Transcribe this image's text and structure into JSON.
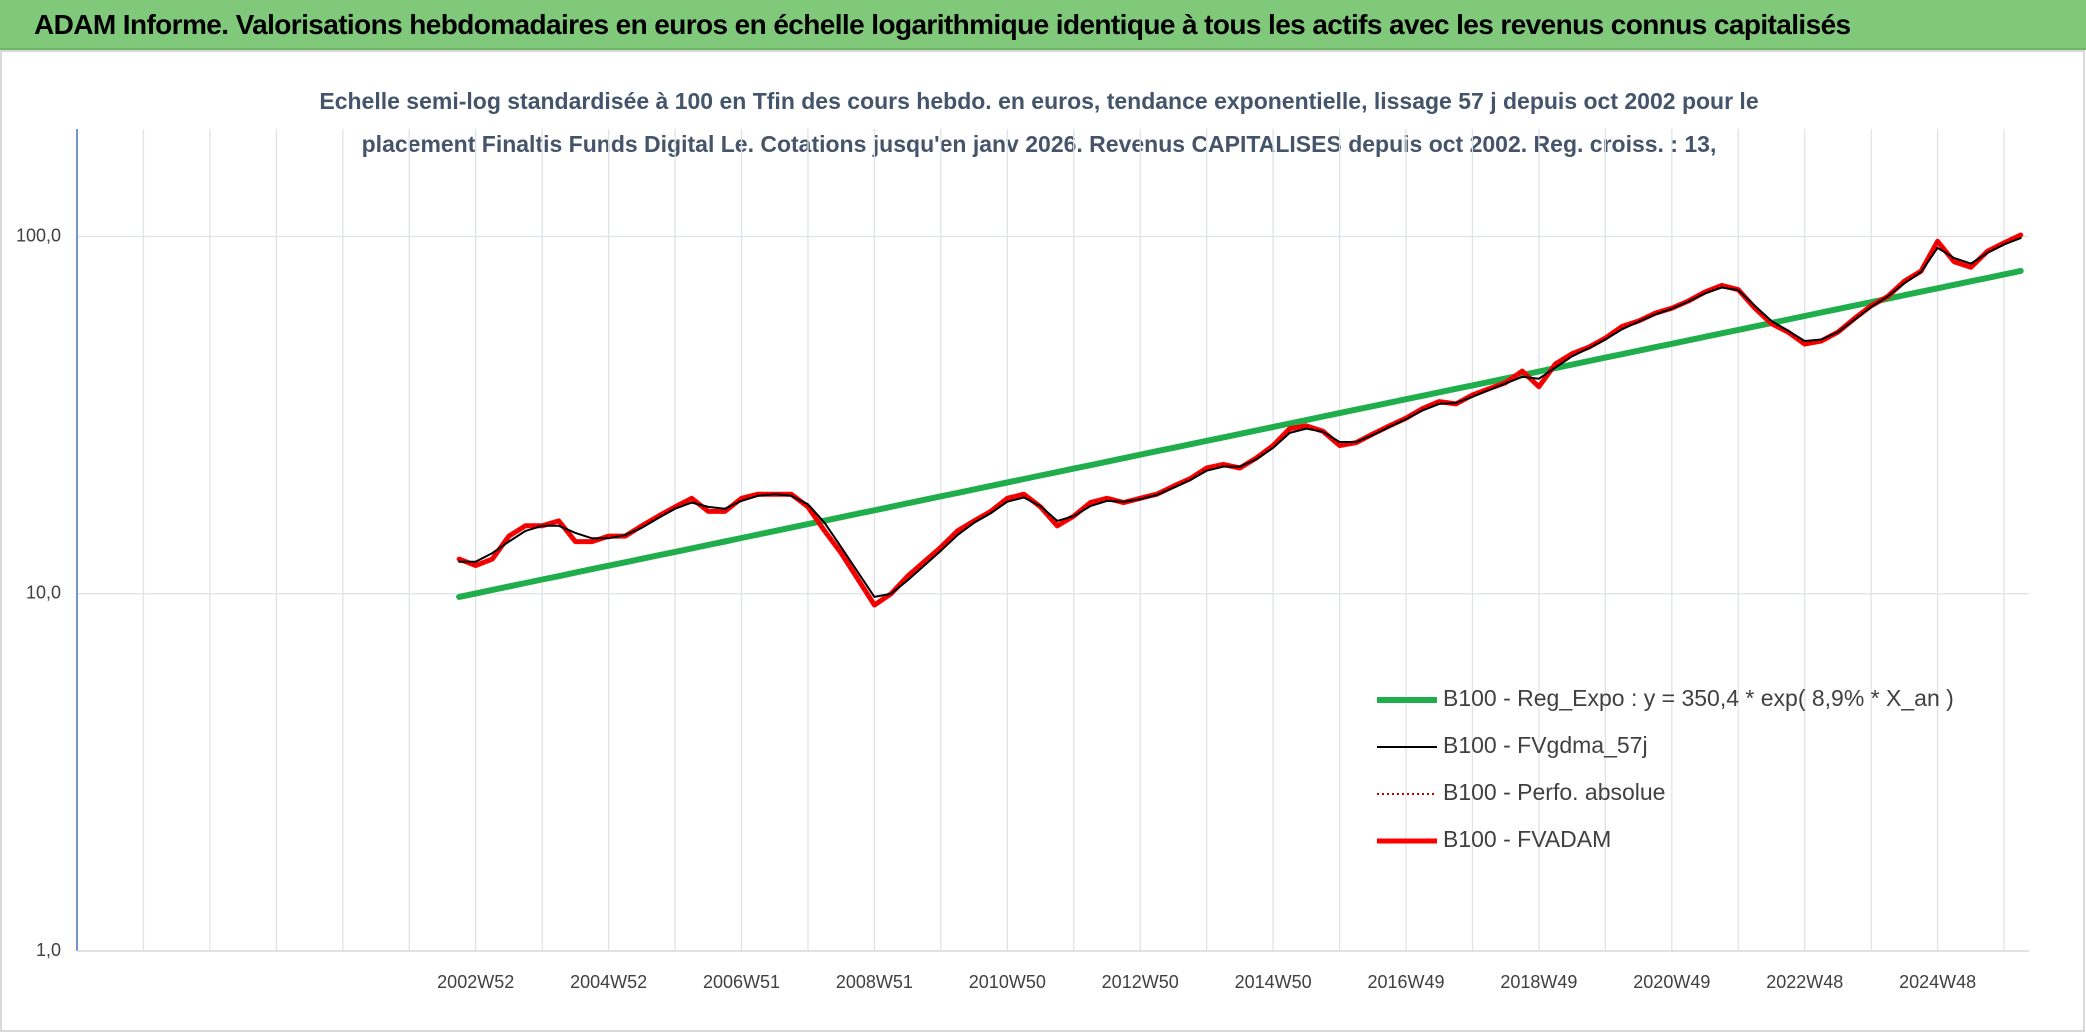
{
  "header": {
    "title": "ADAM Informe. Valorisations hebdomadaires en euros en échelle logarithmique identique à tous les actifs avec les revenus connus capitalisés"
  },
  "chart_data": {
    "type": "line",
    "subtitle": [
      "Echelle semi-log standardisée à 100 en Tfin des cours hebdo. en euros, tendance exponentielle, lissage 57 j depuis oct 2002 pour le",
      "placement Finaltis Funds Digital Le. Cotations jusqu'en janv 2026. Revenus CAPITALISES depuis oct 2002. Reg. croiss. : 13,"
    ],
    "log_scale": true,
    "grid": true,
    "ylim": [
      1,
      200
    ],
    "yticks": [
      {
        "value": 1,
        "label": "1,0"
      },
      {
        "value": 10,
        "label": "10,0"
      },
      {
        "value": 100,
        "label": "100,0"
      }
    ],
    "x": [
      null,
      null,
      null,
      null,
      null,
      null,
      null,
      null,
      null,
      null,
      null,
      null,
      null,
      null,
      null,
      null,
      null,
      null,
      null,
      null,
      null,
      null,
      null,
      null,
      "2002W52",
      null,
      null,
      null,
      null,
      null,
      null,
      null,
      "2004W52",
      null,
      null,
      null,
      null,
      null,
      null,
      null,
      "2006W51",
      null,
      null,
      null,
      null,
      null,
      null,
      null,
      "2008W51",
      null,
      null,
      null,
      null,
      null,
      null,
      null,
      "2010W50",
      null,
      null,
      null,
      null,
      null,
      null,
      null,
      "2012W50",
      null,
      null,
      null,
      null,
      null,
      null,
      null,
      "2014W50",
      null,
      null,
      null,
      null,
      null,
      null,
      null,
      "2016W49",
      null,
      null,
      null,
      null,
      null,
      null,
      null,
      "2018W49",
      null,
      null,
      null,
      null,
      null,
      null,
      null,
      "2020W49",
      null,
      null,
      null,
      null,
      null,
      null,
      null,
      "2022W48",
      null,
      null,
      null,
      null,
      null,
      null,
      null,
      "2024W48",
      null,
      null,
      null,
      null,
      null
    ],
    "series": [
      {
        "name": "B100 - Reg_Expo : y = 350,4 * exp( 8,9% *  X_an )",
        "color": "#1fae4b",
        "line_width": 6,
        "style": "solid",
        "values": [
          null,
          null,
          null,
          null,
          null,
          null,
          null,
          null,
          null,
          null,
          null,
          null,
          null,
          null,
          null,
          null,
          null,
          null,
          null,
          null,
          null,
          null,
          null,
          9.8,
          10.02,
          10.25,
          10.48,
          10.72,
          10.96,
          11.2,
          11.46,
          11.72,
          11.98,
          12.25,
          12.53,
          12.81,
          13.1,
          13.4,
          13.7,
          14.01,
          14.33,
          14.65,
          14.98,
          15.32,
          15.67,
          16.02,
          16.38,
          16.75,
          17.13,
          17.52,
          17.92,
          18.32,
          18.74,
          19.16,
          19.59,
          20.04,
          20.49,
          20.95,
          21.43,
          21.91,
          22.41,
          22.91,
          23.43,
          23.96,
          24.5,
          25.06,
          25.62,
          26.2,
          26.8,
          27.4,
          28.02,
          28.66,
          29.3,
          29.97,
          30.64,
          31.34,
          32.04,
          32.77,
          33.51,
          34.27,
          35.04,
          35.83,
          36.64,
          37.47,
          38.32,
          39.18,
          40.07,
          40.97,
          41.9,
          42.84,
          43.81,
          44.8,
          45.82,
          46.85,
          47.91,
          48.99,
          50.1,
          51.23,
          52.39,
          53.58,
          54.79,
          56.03,
          57.29,
          58.59,
          59.91,
          61.27,
          62.65,
          64.07,
          65.51,
          67,
          68.51,
          70.06,
          71.64,
          73.26,
          74.92,
          76.61,
          78.34,
          80.11
        ]
      },
      {
        "name": "B100 - FVgdma_57j",
        "color": "#000000",
        "line_width": 2,
        "style": "solid",
        "values": [
          null,
          null,
          null,
          null,
          null,
          null,
          null,
          null,
          null,
          null,
          null,
          null,
          null,
          null,
          null,
          null,
          null,
          null,
          null,
          null,
          null,
          null,
          null,
          12.3,
          12.3,
          13,
          14,
          15,
          15.5,
          15.5,
          14.8,
          14.3,
          14.3,
          14.6,
          15.3,
          16.3,
          17.3,
          18,
          17.5,
          17.3,
          18.2,
          18.8,
          19,
          18.8,
          17.8,
          15.8,
          13.5,
          11.5,
          9.8,
          10,
          10.9,
          12,
          13.2,
          14.6,
          15.8,
          16.8,
          18.1,
          18.6,
          17.6,
          16,
          16.5,
          17.6,
          18.2,
          18.1,
          18.4,
          18.9,
          19.8,
          20.8,
          22.1,
          22.7,
          22.7,
          23.8,
          25.6,
          28.2,
          29,
          28.4,
          26.6,
          26.6,
          27.8,
          29.3,
          30.8,
          32.6,
          34,
          34.2,
          35.6,
          37.2,
          38.8,
          40.5,
          40,
          43,
          46.2,
          48.7,
          51.5,
          55,
          57.8,
          60.5,
          62.8,
          65.8,
          69.3,
          72,
          70.8,
          64,
          58,
          54.5,
          51,
          51.5,
          54,
          58.5,
          63.5,
          68,
          74,
          79.5,
          93,
          87,
          84,
          90,
          95,
          99
        ]
      },
      {
        "name": "B100 - Perfo. absolue",
        "color": "#c00000",
        "line_width": 2,
        "style": "dotted",
        "values": [
          null,
          null,
          null,
          null,
          null,
          null,
          null,
          null,
          null,
          null,
          null,
          null,
          null,
          null,
          null,
          null,
          null,
          null,
          null,
          null,
          null,
          null,
          null,
          12.5,
          12,
          12.5,
          14.5,
          15.5,
          15.5,
          16,
          14,
          14,
          14.5,
          14.5,
          15.5,
          16.5,
          17.5,
          18.5,
          17,
          17,
          18.5,
          19,
          19,
          19,
          17.5,
          15,
          13,
          11,
          9.3,
          10,
          11.2,
          12.3,
          13.5,
          15,
          16,
          17,
          18.5,
          19,
          17.5,
          15.5,
          16.5,
          18,
          18.5,
          18,
          18.5,
          19,
          20,
          21,
          22.5,
          23,
          22.5,
          24,
          26,
          29,
          29.5,
          28.5,
          26,
          26.5,
          28,
          29.5,
          31,
          33,
          34.5,
          34,
          36,
          37.5,
          39,
          42,
          38,
          44,
          47,
          49,
          52,
          56,
          58,
          61,
          63,
          66,
          70,
          73,
          71,
          63,
          57,
          54,
          50,
          51,
          54,
          59,
          64,
          68,
          75,
          80,
          97,
          85,
          82,
          91,
          96,
          101
        ]
      },
      {
        "name": "B100 - FVADAM",
        "color": "#ff0000",
        "line_width": 5,
        "style": "solid",
        "values": [
          null,
          null,
          null,
          null,
          null,
          null,
          null,
          null,
          null,
          null,
          null,
          null,
          null,
          null,
          null,
          null,
          null,
          null,
          null,
          null,
          null,
          null,
          null,
          12.5,
          12,
          12.5,
          14.5,
          15.5,
          15.5,
          16,
          14,
          14,
          14.5,
          14.5,
          15.5,
          16.5,
          17.5,
          18.5,
          17,
          17,
          18.5,
          19,
          19,
          19,
          17.5,
          15,
          13,
          11,
          9.3,
          10,
          11.2,
          12.3,
          13.5,
          15,
          16,
          17,
          18.5,
          19,
          17.5,
          15.5,
          16.5,
          18,
          18.5,
          18,
          18.5,
          19,
          20,
          21,
          22.5,
          23,
          22.5,
          24,
          26,
          29,
          29.5,
          28.5,
          26,
          26.5,
          28,
          29.5,
          31,
          33,
          34.5,
          34,
          36,
          37.5,
          39,
          42,
          38,
          44,
          47,
          49,
          52,
          56,
          58,
          61,
          63,
          66,
          70,
          73,
          71,
          63,
          57,
          54,
          50,
          51,
          54,
          59,
          64,
          68,
          75,
          80,
          97,
          85,
          82,
          91,
          96,
          101
        ]
      }
    ]
  }
}
